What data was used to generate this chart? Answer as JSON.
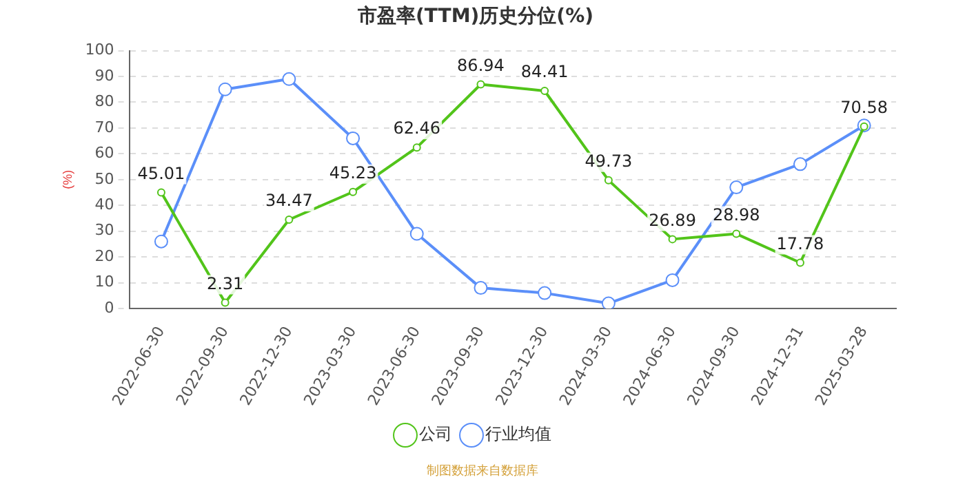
{
  "chart_data": {
    "type": "line",
    "title": "市盈率(TTM)历史分位(%)",
    "ylabel": "(%)",
    "categories": [
      "2022-06-30",
      "2022-09-30",
      "2022-12-30",
      "2023-03-30",
      "2023-06-30",
      "2023-09-30",
      "2023-12-30",
      "2024-03-30",
      "2024-06-30",
      "2024-09-30",
      "2024-12-31",
      "2025-03-28"
    ],
    "series": [
      {
        "name": "公司",
        "color": "#52c41a",
        "values": [
          45.01,
          2.31,
          34.47,
          45.23,
          62.46,
          86.94,
          84.41,
          49.73,
          26.89,
          28.98,
          17.78,
          70.58
        ],
        "value_labels": [
          "45.01",
          "2.31",
          "34.47",
          "45.23",
          "62.46",
          "86.94",
          "84.41",
          "49.73",
          "26.89",
          "28.98",
          "17.78",
          "70.58"
        ]
      },
      {
        "name": "行业均值",
        "color": "#5b8ff9",
        "values": [
          26,
          85,
          89,
          66,
          29,
          8,
          6,
          2,
          11,
          47,
          56,
          71
        ]
      }
    ],
    "ylim": [
      0,
      100
    ],
    "yticks": [
      0,
      10,
      20,
      30,
      40,
      50,
      60,
      70,
      80,
      90,
      100
    ],
    "grid": "y",
    "legend": "bottom",
    "marker": "circle",
    "line_style": "solid",
    "annotations": [
      "制图数据来自数据库"
    ]
  }
}
